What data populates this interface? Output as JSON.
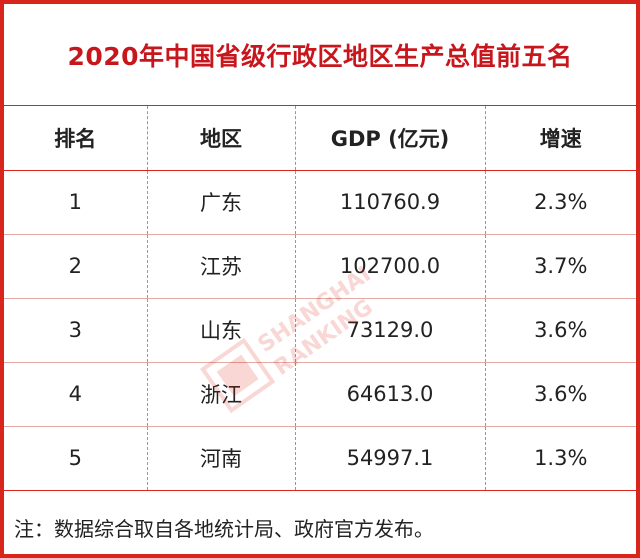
{
  "title": "2020年中国省级行政区地区生产总值前五名",
  "table": {
    "headers": [
      "排名",
      "地区",
      "GDP (亿元)",
      "增速"
    ],
    "rows": [
      [
        "1",
        "广东",
        "110760.9",
        "2.3%"
      ],
      [
        "2",
        "江苏",
        "102700.0",
        "3.7%"
      ],
      [
        "3",
        "山东",
        "73129.0",
        "3.6%"
      ],
      [
        "4",
        "浙江",
        "64613.0",
        "3.6%"
      ],
      [
        "5",
        "河南",
        "54997.1",
        "1.3%"
      ]
    ]
  },
  "note": "注：数据综合取自各地统计局、政府官方发布。",
  "watermark": {
    "line1": "SHANGHAI",
    "line2": "RANKING"
  },
  "colors": {
    "accent": "#d9261c",
    "title": "#c8161d",
    "text": "#222222"
  }
}
